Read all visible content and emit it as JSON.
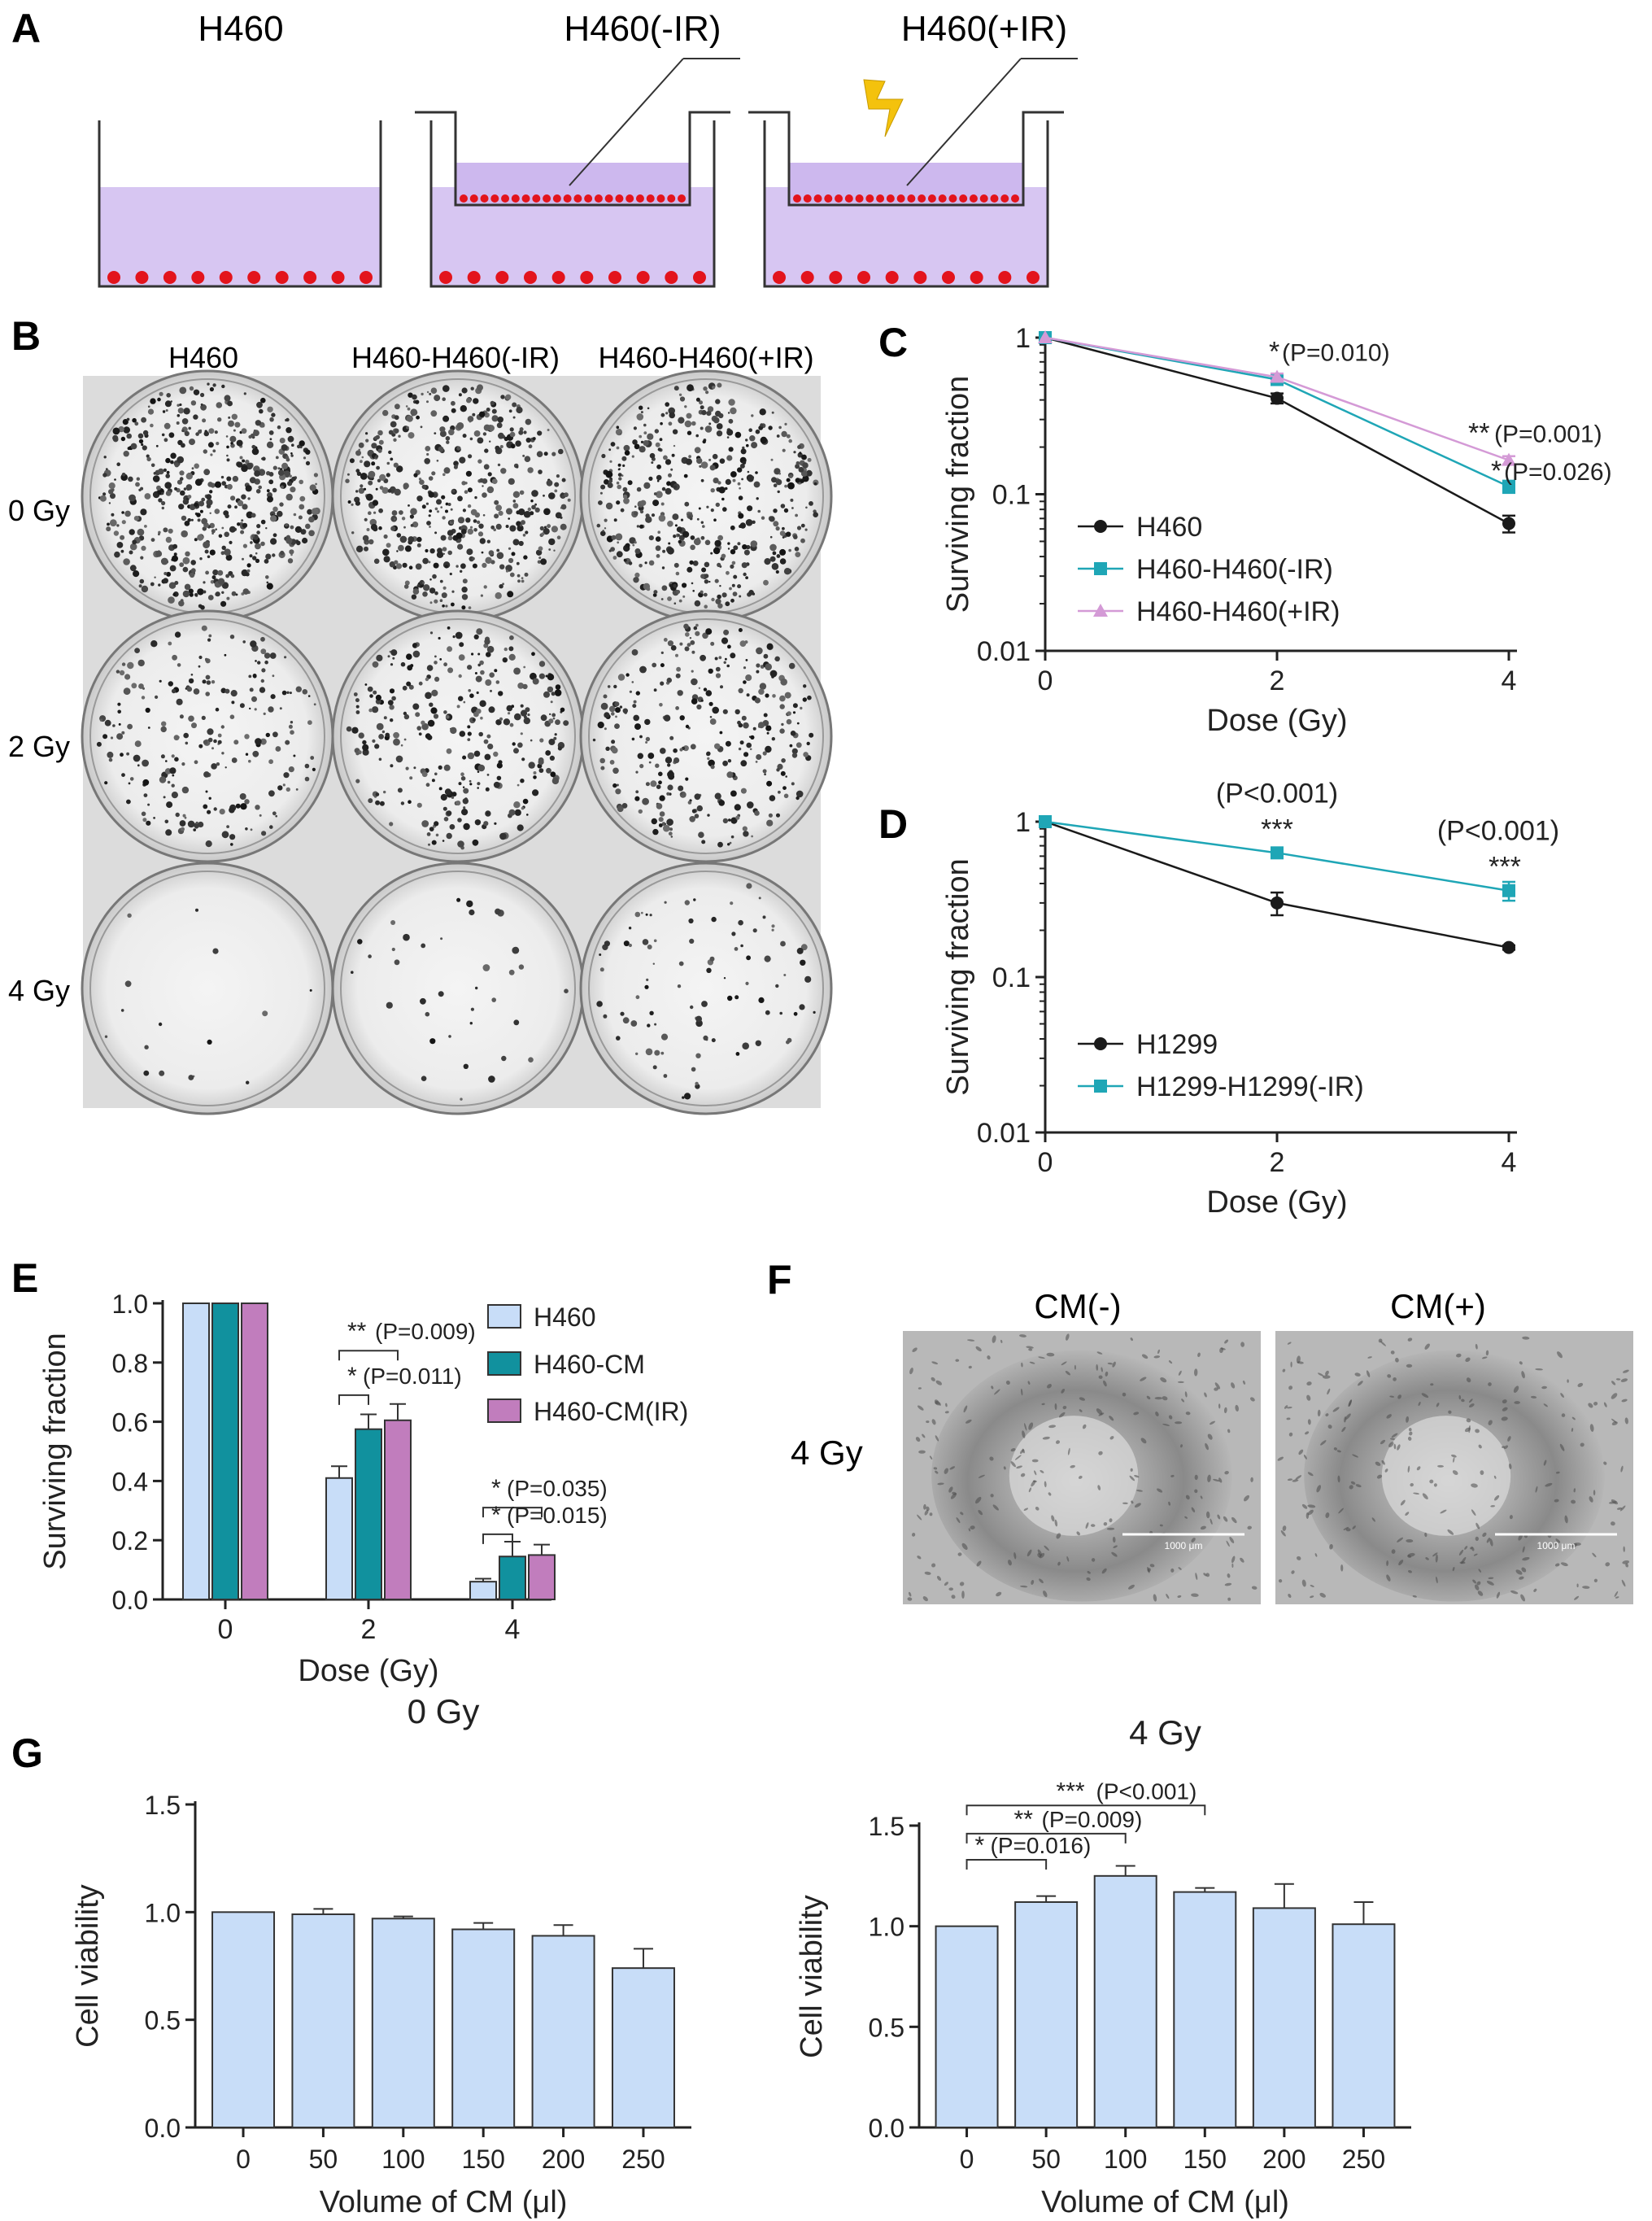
{
  "colors": {
    "medium": "#d7c6f2",
    "cells": "#e3141c",
    "bolt": "#f4c20d",
    "black_series": "#1a1a1a",
    "teal_series": "#1fa6b6",
    "pink_series": "#d49ad6",
    "bar_light": "#c8ddf8",
    "bar_teal": "#11919e",
    "bar_pink": "#c17dbd"
  },
  "panels": {
    "A": {
      "letter": "A",
      "wells": [
        "H460",
        "H460(-IR)",
        "H460(+IR)"
      ],
      "icons": [
        "culture-well-icon",
        "transwell-insert-icon",
        "lightning-bolt-icon"
      ]
    },
    "B": {
      "letter": "B",
      "columns": [
        "H460",
        "H460-H460(-IR)",
        "H460-H460(+IR)"
      ],
      "rows": [
        "0 Gy",
        "2 Gy",
        "4 Gy"
      ],
      "colony_density": [
        [
          1.0,
          0.95,
          0.9
        ],
        [
          0.45,
          0.62,
          0.6
        ],
        [
          0.03,
          0.07,
          0.18
        ]
      ]
    },
    "C": {
      "letter": "C"
    },
    "D": {
      "letter": "D"
    },
    "E": {
      "letter": "E"
    },
    "F": {
      "letter": "F",
      "columns": [
        "CM(-)",
        "CM(+)"
      ],
      "row_label": "4 Gy",
      "scale_bars": [
        "1000 μm",
        "1000 μm"
      ]
    },
    "G": {
      "letter": "G"
    }
  },
  "chart_data": [
    {
      "id": "C",
      "type": "line",
      "ylog": true,
      "xlabel": "Dose (Gy)",
      "ylabel": "Surviving fraction",
      "x": [
        0,
        2,
        4
      ],
      "xticks": [
        "0",
        "2",
        "4"
      ],
      "yticks": [
        "1",
        "0.1",
        "0.01"
      ],
      "ylim": [
        0.01,
        1
      ],
      "legend_position": "bottom-left",
      "series": [
        {
          "name": "H460",
          "values": [
            1.0,
            0.41,
            0.065
          ],
          "err": [
            0,
            0.03,
            0.008
          ],
          "marker": "circle",
          "color_key": "black_series"
        },
        {
          "name": "H460-H460(-IR)",
          "values": [
            1.0,
            0.54,
            0.112
          ],
          "err": [
            0,
            0.03,
            0.01
          ],
          "marker": "square",
          "color_key": "teal_series"
        },
        {
          "name": "H460-H460(+IR)",
          "values": [
            1.0,
            0.56,
            0.165
          ],
          "err": [
            0,
            0.03,
            0.01
          ],
          "marker": "triangle",
          "color_key": "pink_series"
        }
      ],
      "annotations": [
        {
          "stars": "*",
          "text": "(P=0.010)",
          "x": 2,
          "y": 0.56
        },
        {
          "stars": "**",
          "text": "(P=0.001)",
          "x": 4,
          "y": 0.165
        },
        {
          "stars": "*",
          "text": "(P=0.026)",
          "x": 4,
          "y": 0.112
        }
      ]
    },
    {
      "id": "D",
      "type": "line",
      "ylog": true,
      "xlabel": "Dose (Gy)",
      "ylabel": "Surviving fraction",
      "x": [
        0,
        2,
        4
      ],
      "xticks": [
        "0",
        "2",
        "4"
      ],
      "yticks": [
        "1",
        "0.1",
        "0.01"
      ],
      "ylim": [
        0.01,
        1
      ],
      "legend_position": "bottom-left",
      "series": [
        {
          "name": "H1299",
          "values": [
            1.0,
            0.3,
            0.155
          ],
          "err": [
            0,
            0.05,
            0.005
          ],
          "marker": "circle",
          "color_key": "black_series"
        },
        {
          "name": "H1299-H1299(-IR)",
          "values": [
            1.0,
            0.63,
            0.36
          ],
          "err": [
            0,
            0.03,
            0.05
          ],
          "marker": "square",
          "color_key": "teal_series"
        }
      ],
      "annotations": [
        {
          "p": "(P<0.001)",
          "stars": "***",
          "x": 2,
          "y": 0.63
        },
        {
          "p": "(P<0.001)",
          "stars": "***",
          "x": 4,
          "y": 0.36
        }
      ]
    },
    {
      "id": "E",
      "type": "bar",
      "xlabel": "Dose (Gy)",
      "ylabel": "Surviving fraction",
      "categories": [
        "0",
        "2",
        "4"
      ],
      "yticks": [
        "0.0",
        "0.2",
        "0.4",
        "0.6",
        "0.8",
        "1.0"
      ],
      "ylim": [
        0,
        1.0
      ],
      "legend_position": "top-right",
      "series": [
        {
          "name": "H460",
          "values": [
            1.0,
            0.41,
            0.06
          ],
          "err": [
            0,
            0.04,
            0.01
          ],
          "color_key": "bar_light"
        },
        {
          "name": "H460-CM",
          "values": [
            1.0,
            0.575,
            0.145
          ],
          "err": [
            0,
            0.05,
            0.05
          ],
          "color_key": "bar_teal"
        },
        {
          "name": "H460-CM(IR)",
          "values": [
            1.0,
            0.605,
            0.15
          ],
          "err": [
            0,
            0.055,
            0.035
          ],
          "color_key": "bar_pink"
        }
      ],
      "brackets": [
        {
          "stars": "**",
          "text": "(P=0.009)",
          "category": "2",
          "from": 0,
          "to": 2,
          "y": 0.84
        },
        {
          "stars": "*",
          "text": "(P=0.011)",
          "category": "2",
          "from": 0,
          "to": 1,
          "y": 0.69
        },
        {
          "stars": "*",
          "text": "(P=0.035)",
          "category": "4",
          "from": 0,
          "to": 2,
          "y": 0.31
        },
        {
          "stars": "*",
          "text": "(P=0.015)",
          "category": "4",
          "from": 0,
          "to": 1,
          "y": 0.22
        }
      ]
    },
    {
      "id": "G0",
      "type": "bar",
      "title": "0 Gy",
      "xlabel": "Volume of CM (μl)",
      "ylabel": "Cell viability",
      "categories": [
        "0",
        "50",
        "100",
        "150",
        "200",
        "250"
      ],
      "yticks": [
        "0.0",
        "0.5",
        "1.0",
        "1.5"
      ],
      "ylim": [
        0,
        1.5
      ],
      "series": [
        {
          "name": "",
          "values": [
            1.0,
            0.99,
            0.97,
            0.92,
            0.89,
            0.74
          ],
          "err": [
            0,
            0.025,
            0.01,
            0.03,
            0.05,
            0.09
          ],
          "color_key": "bar_light"
        }
      ]
    },
    {
      "id": "G4",
      "type": "bar",
      "title": "4 Gy",
      "xlabel": "Volume of CM (μl)",
      "ylabel": "Cell viability",
      "categories": [
        "0",
        "50",
        "100",
        "150",
        "200",
        "250"
      ],
      "yticks": [
        "0.0",
        "0.5",
        "1.0",
        "1.5"
      ],
      "ylim": [
        0,
        1.5
      ],
      "series": [
        {
          "name": "",
          "values": [
            1.0,
            1.12,
            1.25,
            1.17,
            1.09,
            1.01
          ],
          "err": [
            0,
            0.03,
            0.05,
            0.02,
            0.12,
            0.11
          ],
          "color_key": "bar_light"
        }
      ],
      "brackets": [
        {
          "stars": "***",
          "text": "(P<0.001)",
          "from": 0,
          "to": 3,
          "y": 1.6
        },
        {
          "stars": "**",
          "text": "(P=0.009)",
          "from": 0,
          "to": 2,
          "y": 1.46
        },
        {
          "stars": "*",
          "text": "(P=0.016)",
          "from": 0,
          "to": 1,
          "y": 1.33
        }
      ]
    }
  ]
}
